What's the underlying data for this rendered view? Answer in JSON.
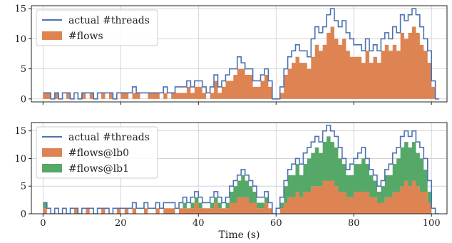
{
  "colors": {
    "threads": "#4c72b0",
    "flows": "#dd8452",
    "flows_lb1": "#55a868",
    "grid": "#cccccc",
    "frame": "#222222"
  },
  "chart_data": [
    {
      "type": "area",
      "xlabel": "",
      "ylabel": "",
      "xlim": [
        -3,
        104
      ],
      "ylim": [
        -0.5,
        15.5
      ],
      "yticks": [
        0,
        5,
        10,
        15
      ],
      "xticks": [
        0,
        20,
        40,
        60,
        80,
        100
      ],
      "grid": true,
      "legend": "top-left",
      "legend_entries": [
        "actual #threads",
        "#flows"
      ],
      "series": [
        {
          "name": "actual #threads",
          "type": "line",
          "color_key": "threads",
          "x": [
            0,
            1,
            2,
            3,
            4,
            5,
            6,
            7,
            8,
            9,
            10,
            11,
            12,
            13,
            14,
            15,
            16,
            17,
            18,
            19,
            20,
            21,
            22,
            23,
            24,
            25,
            26,
            27,
            28,
            29,
            30,
            31,
            32,
            33,
            34,
            35,
            36,
            37,
            38,
            39,
            40,
            41,
            42,
            43,
            44,
            45,
            46,
            47,
            48,
            49,
            50,
            51,
            52,
            53,
            54,
            55,
            56,
            57,
            58,
            59,
            60,
            61,
            62,
            63,
            64,
            65,
            66,
            67,
            68,
            69,
            70,
            71,
            72,
            73,
            74,
            75,
            76,
            77,
            78,
            79,
            80,
            81,
            82,
            83,
            84,
            85,
            86,
            87,
            88,
            89,
            90,
            91,
            92,
            93,
            94,
            95,
            96,
            97,
            98,
            99,
            100,
            101
          ],
          "y": [
            1,
            1,
            0,
            1,
            0,
            1,
            1,
            0,
            1,
            0,
            1,
            1,
            1,
            0,
            1,
            1,
            1,
            1,
            0,
            1,
            1,
            1,
            1,
            2,
            1,
            1,
            1,
            1,
            1,
            1,
            1,
            2,
            1,
            1,
            2,
            2,
            2,
            3,
            2,
            3,
            3,
            2,
            1,
            2,
            4,
            2,
            3,
            4,
            5,
            5,
            7,
            6,
            5,
            5,
            3,
            3,
            4,
            5,
            3,
            0,
            0,
            2,
            5,
            7,
            8,
            9,
            8,
            8,
            7,
            10,
            12,
            11,
            12,
            14,
            15,
            13,
            12,
            13,
            11,
            10,
            9,
            9,
            8,
            10,
            8,
            9,
            8,
            10,
            11,
            10,
            12,
            11,
            14,
            13,
            14,
            15,
            14,
            12,
            10,
            8,
            3,
            0
          ]
        },
        {
          "name": "#flows",
          "type": "area",
          "color_key": "flows",
          "x": [
            0,
            1,
            2,
            3,
            4,
            5,
            6,
            7,
            8,
            9,
            10,
            11,
            12,
            13,
            14,
            15,
            16,
            17,
            18,
            19,
            20,
            21,
            22,
            23,
            24,
            25,
            26,
            27,
            28,
            29,
            30,
            31,
            32,
            33,
            34,
            35,
            36,
            37,
            38,
            39,
            40,
            41,
            42,
            43,
            44,
            45,
            46,
            47,
            48,
            49,
            50,
            51,
            52,
            53,
            54,
            55,
            56,
            57,
            58,
            59,
            60,
            61,
            62,
            63,
            64,
            65,
            66,
            67,
            68,
            69,
            70,
            71,
            72,
            73,
            74,
            75,
            76,
            77,
            78,
            79,
            80,
            81,
            82,
            83,
            84,
            85,
            86,
            87,
            88,
            89,
            90,
            91,
            92,
            93,
            94,
            95,
            96,
            97,
            98,
            99,
            100,
            101
          ],
          "y": [
            1,
            1,
            0,
            1,
            0,
            0,
            1,
            0,
            0,
            0,
            1,
            0,
            1,
            0,
            0,
            1,
            0,
            1,
            0,
            0,
            1,
            1,
            0,
            1,
            1,
            0,
            0,
            1,
            1,
            1,
            0,
            1,
            0,
            1,
            1,
            1,
            1,
            2,
            1,
            2,
            2,
            1,
            0,
            1,
            3,
            1,
            2,
            3,
            3,
            4,
            5,
            5,
            4,
            4,
            2,
            2,
            3,
            4,
            2,
            0,
            0,
            1,
            4,
            5,
            6,
            7,
            6,
            6,
            5,
            7,
            9,
            8,
            9,
            11,
            12,
            10,
            9,
            10,
            8,
            7,
            7,
            7,
            6,
            8,
            6,
            7,
            6,
            8,
            9,
            8,
            9,
            8,
            11,
            10,
            11,
            12,
            11,
            9,
            8,
            6,
            2,
            0
          ]
        }
      ]
    },
    {
      "type": "area",
      "xlabel": "Time (s)",
      "ylabel": "",
      "xlim": [
        -3,
        104
      ],
      "ylim": [
        0,
        16.5
      ],
      "yticks": [
        0,
        5,
        10,
        15
      ],
      "xticks": [
        0,
        20,
        40,
        60,
        80,
        100
      ],
      "grid": true,
      "legend": "top-left",
      "legend_entries": [
        "actual #threads",
        "#flows@lb0",
        "#flows@lb1"
      ],
      "series": [
        {
          "name": "actual #threads",
          "type": "line",
          "color_key": "threads",
          "x": [
            0,
            1,
            2,
            3,
            4,
            5,
            6,
            7,
            8,
            9,
            10,
            11,
            12,
            13,
            14,
            15,
            16,
            17,
            18,
            19,
            20,
            21,
            22,
            23,
            24,
            25,
            26,
            27,
            28,
            29,
            30,
            31,
            32,
            33,
            34,
            35,
            36,
            37,
            38,
            39,
            40,
            41,
            42,
            43,
            44,
            45,
            46,
            47,
            48,
            49,
            50,
            51,
            52,
            53,
            54,
            55,
            56,
            57,
            58,
            59,
            60,
            61,
            62,
            63,
            64,
            65,
            66,
            67,
            68,
            69,
            70,
            71,
            72,
            73,
            74,
            75,
            76,
            77,
            78,
            79,
            80,
            81,
            82,
            83,
            84,
            85,
            86,
            87,
            88,
            89,
            90,
            91,
            92,
            93,
            94,
            95,
            96,
            97,
            98,
            99,
            100,
            101
          ],
          "y": [
            2,
            1,
            0,
            1,
            0,
            1,
            0,
            1,
            1,
            0,
            1,
            1,
            1,
            0,
            1,
            1,
            1,
            0,
            1,
            1,
            1,
            1,
            1,
            2,
            1,
            1,
            2,
            1,
            1,
            2,
            1,
            2,
            2,
            2,
            1,
            2,
            3,
            2,
            3,
            4,
            3,
            2,
            2,
            3,
            4,
            3,
            2,
            3,
            5,
            6,
            7,
            8,
            7,
            6,
            5,
            3,
            3,
            4,
            2,
            0,
            1,
            3,
            6,
            8,
            9,
            10,
            9,
            11,
            12,
            13,
            14,
            13,
            15,
            16,
            15,
            14,
            12,
            10,
            8,
            9,
            10,
            11,
            12,
            10,
            8,
            7,
            5,
            6,
            8,
            9,
            11,
            12,
            14,
            15,
            14,
            15,
            13,
            12,
            10,
            6,
            1,
            0
          ]
        },
        {
          "name": "#flows@lb0",
          "type": "area",
          "color_key": "flows",
          "x": [
            0,
            1,
            2,
            3,
            4,
            5,
            6,
            7,
            8,
            9,
            10,
            11,
            12,
            13,
            14,
            15,
            16,
            17,
            18,
            19,
            20,
            21,
            22,
            23,
            24,
            25,
            26,
            27,
            28,
            29,
            30,
            31,
            32,
            33,
            34,
            35,
            36,
            37,
            38,
            39,
            40,
            41,
            42,
            43,
            44,
            45,
            46,
            47,
            48,
            49,
            50,
            51,
            52,
            53,
            54,
            55,
            56,
            57,
            58,
            59,
            60,
            61,
            62,
            63,
            64,
            65,
            66,
            67,
            68,
            69,
            70,
            71,
            72,
            73,
            74,
            75,
            76,
            77,
            78,
            79,
            80,
            81,
            82,
            83,
            84,
            85,
            86,
            87,
            88,
            89,
            90,
            91,
            92,
            93,
            94,
            95,
            96,
            97,
            98,
            99,
            100,
            101
          ],
          "y": [
            1,
            0,
            0,
            0,
            0,
            0,
            0,
            0,
            1,
            0,
            0,
            1,
            0,
            0,
            0,
            1,
            0,
            0,
            0,
            1,
            0,
            1,
            0,
            1,
            0,
            0,
            1,
            0,
            0,
            1,
            0,
            1,
            1,
            1,
            0,
            1,
            1,
            1,
            1,
            2,
            1,
            1,
            1,
            1,
            2,
            1,
            1,
            1,
            2,
            2,
            3,
            3,
            3,
            2,
            2,
            1,
            1,
            2,
            1,
            0,
            0,
            1,
            2,
            3,
            3,
            4,
            3,
            4,
            4,
            5,
            5,
            5,
            6,
            6,
            6,
            5,
            4,
            4,
            3,
            3,
            4,
            4,
            4,
            4,
            3,
            3,
            2,
            2,
            3,
            3,
            4,
            4,
            5,
            6,
            5,
            6,
            5,
            4,
            4,
            2,
            0,
            0
          ]
        },
        {
          "name": "#flows@lb1",
          "type": "area",
          "color_key": "flows_lb1",
          "x": [
            0,
            1,
            2,
            3,
            4,
            5,
            6,
            7,
            8,
            9,
            10,
            11,
            12,
            13,
            14,
            15,
            16,
            17,
            18,
            19,
            20,
            21,
            22,
            23,
            24,
            25,
            26,
            27,
            28,
            29,
            30,
            31,
            32,
            33,
            34,
            35,
            36,
            37,
            38,
            39,
            40,
            41,
            42,
            43,
            44,
            45,
            46,
            47,
            48,
            49,
            50,
            51,
            52,
            53,
            54,
            55,
            56,
            57,
            58,
            59,
            60,
            61,
            62,
            63,
            64,
            65,
            66,
            67,
            68,
            69,
            70,
            71,
            72,
            73,
            74,
            75,
            76,
            77,
            78,
            79,
            80,
            81,
            82,
            83,
            84,
            85,
            86,
            87,
            88,
            89,
            90,
            91,
            92,
            93,
            94,
            95,
            96,
            97,
            98,
            99,
            100,
            101
          ],
          "y": [
            1,
            0,
            0,
            0,
            0,
            0,
            0,
            0,
            0,
            0,
            0,
            0,
            0,
            0,
            0,
            0,
            0,
            0,
            0,
            0,
            0,
            0,
            0,
            0,
            0,
            0,
            0,
            0,
            0,
            0,
            0,
            0,
            0,
            0,
            0,
            0,
            1,
            0,
            1,
            1,
            1,
            0,
            0,
            1,
            1,
            1,
            0,
            1,
            2,
            3,
            3,
            4,
            3,
            3,
            2,
            1,
            1,
            1,
            0,
            0,
            0,
            1,
            3,
            4,
            4,
            5,
            4,
            5,
            6,
            6,
            7,
            6,
            7,
            8,
            7,
            7,
            6,
            5,
            4,
            4,
            5,
            5,
            6,
            5,
            4,
            3,
            2,
            3,
            4,
            4,
            5,
            6,
            7,
            7,
            7,
            7,
            6,
            6,
            4,
            2,
            0,
            0
          ]
        }
      ]
    }
  ]
}
